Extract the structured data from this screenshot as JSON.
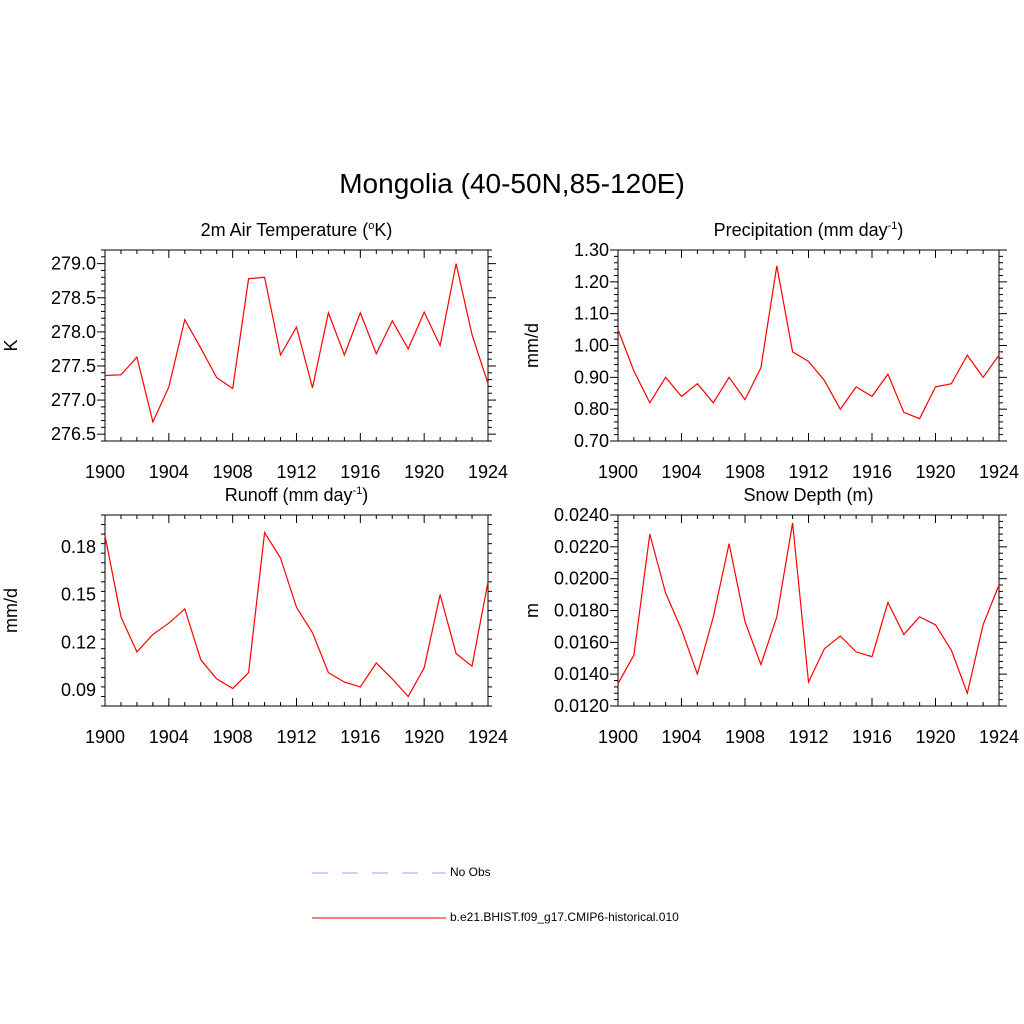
{
  "title": "Mongolia (40-50N,85-120E)",
  "colors": {
    "model": "#ff0000",
    "obs": "#a0a0ff"
  },
  "legend": [
    {
      "label": "No Obs",
      "style": "dashed",
      "color": "#a0a0ff"
    },
    {
      "label": "b.e21.BHIST.f09_g17.CMIP6-historical.010",
      "style": "solid",
      "color": "#ff0000"
    }
  ],
  "chart_data": [
    {
      "type": "line",
      "title": "2m Air Temperature (",
      "title_sup": "o",
      "title_after": "K)",
      "title_sup2": "",
      "title_after2": "",
      "ylabel": "K",
      "xlim": [
        1900,
        1924
      ],
      "ylim": [
        276.4,
        279.2
      ],
      "xticks": [
        1900,
        1904,
        1908,
        1912,
        1916,
        1920,
        1924
      ],
      "yticks": [
        276.5,
        277.0,
        277.5,
        278.0,
        278.5,
        279.0
      ],
      "ytick_labels": [
        "276.5",
        "277.0",
        "277.5",
        "278.0",
        "278.5",
        "279.0"
      ],
      "x": [
        1900,
        1901,
        1902,
        1903,
        1904,
        1905,
        1906,
        1907,
        1908,
        1909,
        1910,
        1911,
        1912,
        1913,
        1914,
        1915,
        1916,
        1917,
        1918,
        1919,
        1920,
        1921,
        1922,
        1923,
        1924
      ],
      "series": [
        {
          "name": "b.e21.BHIST.f09_g17.CMIP6-historical.010",
          "values": [
            277.36,
            277.37,
            277.63,
            276.68,
            277.19,
            278.18,
            277.76,
            277.33,
            277.17,
            278.78,
            278.8,
            277.66,
            278.07,
            277.18,
            278.28,
            277.66,
            278.28,
            277.68,
            278.16,
            277.75,
            278.29,
            277.8,
            279.0,
            277.96,
            277.24
          ]
        }
      ]
    },
    {
      "type": "line",
      "title": "Precipitation (mm day",
      "title_sup": "-1",
      "title_after": ")",
      "ylabel": "mm/d",
      "xlim": [
        1900,
        1924
      ],
      "ylim": [
        0.7,
        1.3
      ],
      "xticks": [
        1900,
        1904,
        1908,
        1912,
        1916,
        1920,
        1924
      ],
      "yticks": [
        0.7,
        0.8,
        0.9,
        1.0,
        1.1,
        1.2,
        1.3
      ],
      "ytick_labels": [
        "0.70",
        "0.80",
        "0.90",
        "1.00",
        "1.10",
        "1.20",
        "1.30"
      ],
      "x": [
        1900,
        1901,
        1902,
        1903,
        1904,
        1905,
        1906,
        1907,
        1908,
        1909,
        1910,
        1911,
        1912,
        1913,
        1914,
        1915,
        1916,
        1917,
        1918,
        1919,
        1920,
        1921,
        1922,
        1923,
        1924
      ],
      "series": [
        {
          "name": "b.e21.BHIST.f09_g17.CMIP6-historical.010",
          "values": [
            1.05,
            0.92,
            0.82,
            0.9,
            0.84,
            0.88,
            0.82,
            0.9,
            0.83,
            0.93,
            1.25,
            0.98,
            0.95,
            0.89,
            0.8,
            0.87,
            0.84,
            0.91,
            0.79,
            0.77,
            0.87,
            0.88,
            0.97,
            0.9,
            0.97
          ]
        }
      ]
    },
    {
      "type": "line",
      "title": "Runoff (mm day",
      "title_sup": "-1",
      "title_after": ")",
      "ylabel": "mm/d",
      "xlim": [
        1900,
        1924
      ],
      "ylim": [
        0.08,
        0.2
      ],
      "xticks": [
        1900,
        1904,
        1908,
        1912,
        1916,
        1920,
        1924
      ],
      "yticks": [
        0.09,
        0.12,
        0.15,
        0.18
      ],
      "ytick_labels": [
        "0.09",
        "0.12",
        "0.15",
        "0.18"
      ],
      "x": [
        1900,
        1901,
        1902,
        1903,
        1904,
        1905,
        1906,
        1907,
        1908,
        1909,
        1910,
        1911,
        1912,
        1913,
        1914,
        1915,
        1916,
        1917,
        1918,
        1919,
        1920,
        1921,
        1922,
        1923,
        1924
      ],
      "series": [
        {
          "name": "b.e21.BHIST.f09_g17.CMIP6-historical.010",
          "values": [
            0.187,
            0.136,
            0.114,
            0.125,
            0.132,
            0.141,
            0.109,
            0.097,
            0.091,
            0.101,
            0.189,
            0.173,
            0.142,
            0.126,
            0.101,
            0.095,
            0.092,
            0.107,
            0.097,
            0.086,
            0.104,
            0.15,
            0.113,
            0.105,
            0.158
          ]
        }
      ]
    },
    {
      "type": "line",
      "title": "Snow Depth (m)",
      "title_sup": "",
      "title_after": "",
      "ylabel": "m",
      "xlim": [
        1900,
        1924
      ],
      "ylim": [
        0.012,
        0.024
      ],
      "xticks": [
        1900,
        1904,
        1908,
        1912,
        1916,
        1920,
        1924
      ],
      "yticks": [
        0.012,
        0.014,
        0.016,
        0.018,
        0.02,
        0.022,
        0.024
      ],
      "ytick_labels": [
        "0.0120",
        "0.0140",
        "0.0160",
        "0.0180",
        "0.0200",
        "0.0220",
        "0.0240"
      ],
      "x": [
        1900,
        1901,
        1902,
        1903,
        1904,
        1905,
        1906,
        1907,
        1908,
        1909,
        1910,
        1911,
        1912,
        1913,
        1914,
        1915,
        1916,
        1917,
        1918,
        1919,
        1920,
        1921,
        1922,
        1923,
        1924
      ],
      "series": [
        {
          "name": "b.e21.BHIST.f09_g17.CMIP6-historical.010",
          "values": [
            0.0134,
            0.0152,
            0.0228,
            0.0191,
            0.0168,
            0.014,
            0.0176,
            0.0222,
            0.0173,
            0.0146,
            0.0176,
            0.0235,
            0.0135,
            0.0156,
            0.0164,
            0.0154,
            0.0151,
            0.0185,
            0.0165,
            0.0176,
            0.0171,
            0.0155,
            0.0128,
            0.0171,
            0.0196
          ]
        }
      ]
    }
  ]
}
